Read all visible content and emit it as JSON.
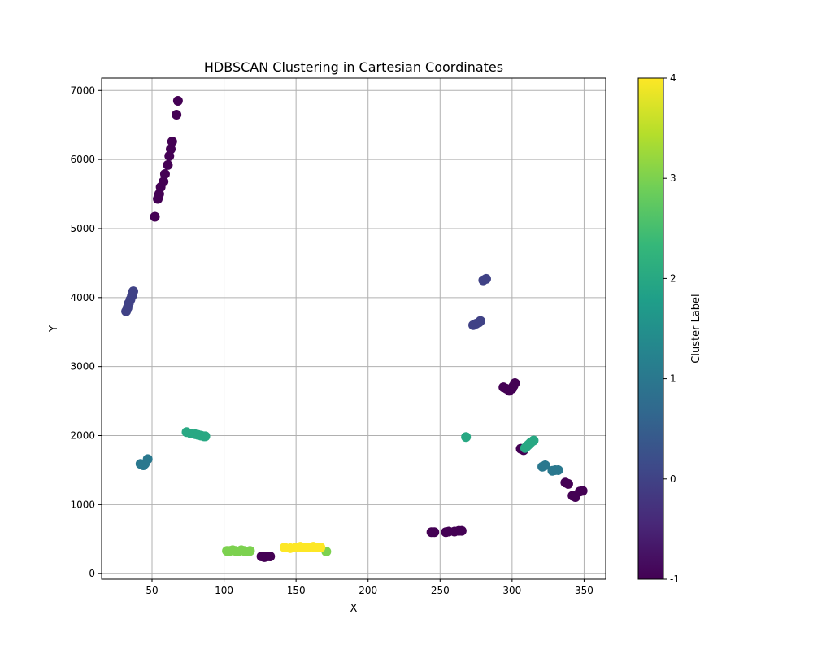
{
  "chart_data": {
    "type": "scatter",
    "title": "HDBSCAN Clustering in Cartesian Coordinates",
    "xlabel": "X",
    "ylabel": "Y",
    "xlim": [
      15,
      365
    ],
    "ylim": [
      -80,
      7180
    ],
    "xticks": [
      50,
      100,
      150,
      200,
      250,
      300,
      350
    ],
    "yticks": [
      0,
      1000,
      2000,
      3000,
      4000,
      5000,
      6000,
      7000
    ],
    "grid": true,
    "colorbar": {
      "label": "Cluster Label",
      "range": [
        -1,
        4
      ],
      "ticks": [
        -1,
        0,
        1,
        2,
        3,
        4
      ],
      "colormap": [
        "#440154",
        "#482878",
        "#3e4989",
        "#31688e",
        "#26828e",
        "#1f9e89",
        "#35b779",
        "#6ece58",
        "#b5de2b",
        "#fde725"
      ]
    },
    "points": [
      {
        "x": 52,
        "y": 5170,
        "label": -1
      },
      {
        "x": 54,
        "y": 5430,
        "label": -1
      },
      {
        "x": 55,
        "y": 5500,
        "label": -1
      },
      {
        "x": 56,
        "y": 5600,
        "label": -1
      },
      {
        "x": 58,
        "y": 5680,
        "label": -1
      },
      {
        "x": 59,
        "y": 5790,
        "label": -1
      },
      {
        "x": 61,
        "y": 5920,
        "label": -1
      },
      {
        "x": 62,
        "y": 6050,
        "label": -1
      },
      {
        "x": 63,
        "y": 6150,
        "label": -1
      },
      {
        "x": 64,
        "y": 6260,
        "label": -1
      },
      {
        "x": 67,
        "y": 6650,
        "label": -1
      },
      {
        "x": 68,
        "y": 6850,
        "label": -1
      },
      {
        "x": 32,
        "y": 3800,
        "label": 0
      },
      {
        "x": 33,
        "y": 3850,
        "label": 0
      },
      {
        "x": 34,
        "y": 3920,
        "label": 0
      },
      {
        "x": 35,
        "y": 3970,
        "label": 0
      },
      {
        "x": 36,
        "y": 4020,
        "label": 0
      },
      {
        "x": 37,
        "y": 4090,
        "label": 0
      },
      {
        "x": 42,
        "y": 1590,
        "label": 1
      },
      {
        "x": 44,
        "y": 1570,
        "label": 1
      },
      {
        "x": 45,
        "y": 1590,
        "label": 1
      },
      {
        "x": 47,
        "y": 1660,
        "label": 1
      },
      {
        "x": 74,
        "y": 2050,
        "label": 2
      },
      {
        "x": 77,
        "y": 2030,
        "label": 2
      },
      {
        "x": 80,
        "y": 2020,
        "label": 2
      },
      {
        "x": 82,
        "y": 2010,
        "label": 2
      },
      {
        "x": 84,
        "y": 2000,
        "label": 2
      },
      {
        "x": 86,
        "y": 1990,
        "label": 2
      },
      {
        "x": 87,
        "y": 1990,
        "label": 2
      },
      {
        "x": 102,
        "y": 330,
        "label": 3
      },
      {
        "x": 104,
        "y": 330,
        "label": 3
      },
      {
        "x": 106,
        "y": 340,
        "label": 3
      },
      {
        "x": 108,
        "y": 330,
        "label": 3
      },
      {
        "x": 110,
        "y": 320,
        "label": 3
      },
      {
        "x": 112,
        "y": 340,
        "label": 3
      },
      {
        "x": 114,
        "y": 330,
        "label": 3
      },
      {
        "x": 116,
        "y": 320,
        "label": 3
      },
      {
        "x": 118,
        "y": 330,
        "label": 3
      },
      {
        "x": 171,
        "y": 320,
        "label": 3
      },
      {
        "x": 126,
        "y": 250,
        "label": -1
      },
      {
        "x": 128,
        "y": 240,
        "label": -1
      },
      {
        "x": 130,
        "y": 250,
        "label": -1
      },
      {
        "x": 132,
        "y": 250,
        "label": -1
      },
      {
        "x": 142,
        "y": 380,
        "label": 4
      },
      {
        "x": 146,
        "y": 370,
        "label": 4
      },
      {
        "x": 150,
        "y": 380,
        "label": 4
      },
      {
        "x": 153,
        "y": 390,
        "label": 4
      },
      {
        "x": 156,
        "y": 380,
        "label": 4
      },
      {
        "x": 159,
        "y": 380,
        "label": 4
      },
      {
        "x": 162,
        "y": 390,
        "label": 4
      },
      {
        "x": 165,
        "y": 380,
        "label": 4
      },
      {
        "x": 167,
        "y": 380,
        "label": 4
      },
      {
        "x": 244,
        "y": 600,
        "label": -1
      },
      {
        "x": 246,
        "y": 600,
        "label": -1
      },
      {
        "x": 254,
        "y": 600,
        "label": -1
      },
      {
        "x": 256,
        "y": 610,
        "label": -1
      },
      {
        "x": 260,
        "y": 610,
        "label": -1
      },
      {
        "x": 263,
        "y": 620,
        "label": -1
      },
      {
        "x": 265,
        "y": 620,
        "label": -1
      },
      {
        "x": 268,
        "y": 1980,
        "label": 2
      },
      {
        "x": 273,
        "y": 3600,
        "label": 0
      },
      {
        "x": 275,
        "y": 3620,
        "label": 0
      },
      {
        "x": 277,
        "y": 3640,
        "label": 0
      },
      {
        "x": 278,
        "y": 3660,
        "label": 0
      },
      {
        "x": 280,
        "y": 4250,
        "label": 0
      },
      {
        "x": 282,
        "y": 4270,
        "label": 0
      },
      {
        "x": 294,
        "y": 2700,
        "label": -1
      },
      {
        "x": 296,
        "y": 2680,
        "label": -1
      },
      {
        "x": 298,
        "y": 2650,
        "label": -1
      },
      {
        "x": 300,
        "y": 2680,
        "label": -1
      },
      {
        "x": 301,
        "y": 2720,
        "label": -1
      },
      {
        "x": 302,
        "y": 2760,
        "label": -1
      },
      {
        "x": 306,
        "y": 1810,
        "label": -1
      },
      {
        "x": 308,
        "y": 1790,
        "label": -1
      },
      {
        "x": 309,
        "y": 1820,
        "label": 2
      },
      {
        "x": 310,
        "y": 1840,
        "label": 2
      },
      {
        "x": 311,
        "y": 1860,
        "label": 2
      },
      {
        "x": 312,
        "y": 1880,
        "label": 2
      },
      {
        "x": 313,
        "y": 1900,
        "label": 2
      },
      {
        "x": 315,
        "y": 1930,
        "label": 2
      },
      {
        "x": 321,
        "y": 1550,
        "label": 1
      },
      {
        "x": 323,
        "y": 1570,
        "label": 1
      },
      {
        "x": 328,
        "y": 1490,
        "label": 1
      },
      {
        "x": 330,
        "y": 1500,
        "label": 1
      },
      {
        "x": 332,
        "y": 1500,
        "label": 1
      },
      {
        "x": 337,
        "y": 1320,
        "label": -1
      },
      {
        "x": 339,
        "y": 1300,
        "label": -1
      },
      {
        "x": 342,
        "y": 1130,
        "label": -1
      },
      {
        "x": 344,
        "y": 1110,
        "label": -1
      },
      {
        "x": 347,
        "y": 1190,
        "label": -1
      },
      {
        "x": 349,
        "y": 1200,
        "label": -1
      }
    ]
  }
}
